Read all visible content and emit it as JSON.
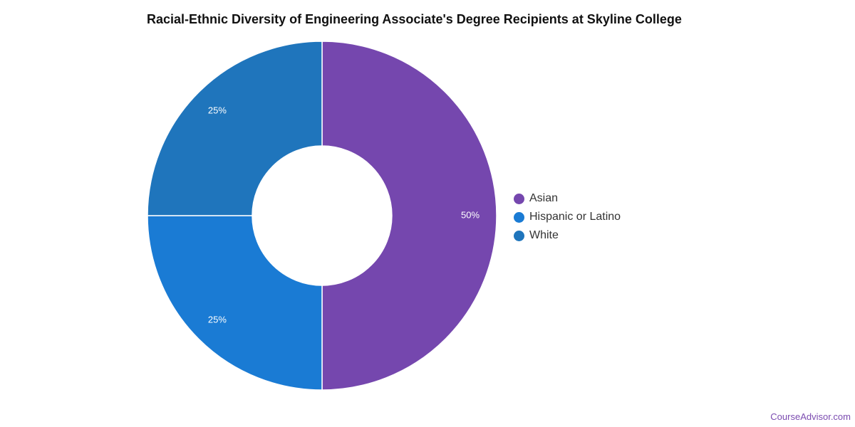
{
  "chart_data": {
    "type": "pie",
    "title": "Racial-Ethnic Diversity of Engineering Associate's Degree Recipients at Skyline College",
    "donut": true,
    "legend_position": "right",
    "slices": [
      {
        "label": "Asian",
        "value": 50,
        "display": "50%",
        "color": "#7547ae"
      },
      {
        "label": "Hispanic or Latino",
        "value": 25,
        "display": "25%",
        "color": "#1a7bd4"
      },
      {
        "label": "White",
        "value": 25,
        "display": "25%",
        "color": "#1f75bc"
      }
    ]
  },
  "footer": {
    "credit": "CourseAdvisor.com"
  }
}
